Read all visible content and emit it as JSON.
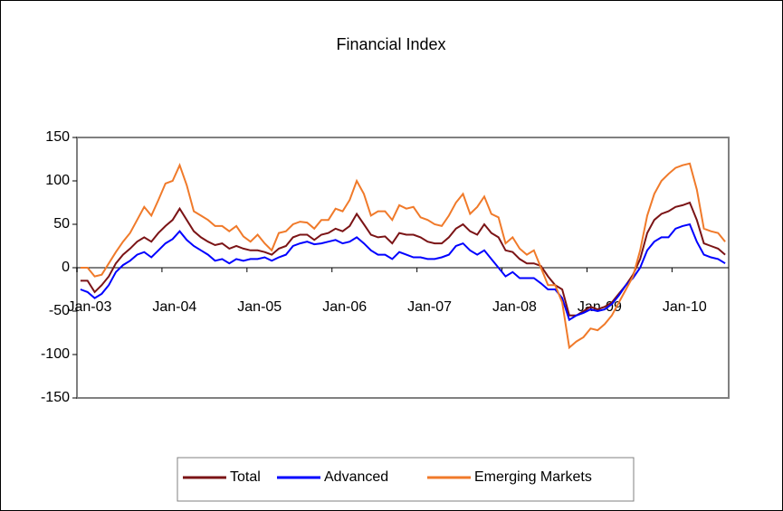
{
  "chart_data": {
    "type": "line",
    "title": "Financial Index",
    "categories": [
      "Jan-03",
      null,
      null,
      null,
      null,
      null,
      null,
      null,
      null,
      null,
      null,
      null,
      "Jan-04",
      null,
      null,
      null,
      null,
      null,
      null,
      null,
      null,
      null,
      null,
      null,
      "Jan-05",
      null,
      null,
      null,
      null,
      null,
      null,
      null,
      null,
      null,
      null,
      null,
      "Jan-06",
      null,
      null,
      null,
      null,
      null,
      null,
      null,
      null,
      null,
      null,
      null,
      "Jan-07",
      null,
      null,
      null,
      null,
      null,
      null,
      null,
      null,
      null,
      null,
      null,
      "Jan-08",
      null,
      null,
      null,
      null,
      null,
      null,
      null,
      null,
      null,
      null,
      null,
      "Jan-09",
      null,
      null,
      null,
      null,
      null,
      null,
      null,
      null,
      null,
      null,
      null,
      "Jan-10",
      null,
      null,
      null,
      null,
      null,
      null,
      null
    ],
    "series": [
      {
        "name": "Total",
        "color": "#7b1416",
        "values": [
          -15,
          -15,
          -28,
          -20,
          -10,
          5,
          15,
          22,
          30,
          35,
          30,
          40,
          48,
          55,
          68,
          55,
          42,
          35,
          30,
          26,
          28,
          22,
          25,
          22,
          20,
          20,
          18,
          15,
          22,
          25,
          35,
          38,
          38,
          32,
          38,
          40,
          45,
          42,
          48,
          62,
          50,
          38,
          35,
          36,
          28,
          40,
          38,
          38,
          35,
          30,
          28,
          28,
          35,
          45,
          50,
          42,
          38,
          50,
          40,
          35,
          20,
          18,
          10,
          5,
          5,
          2,
          -10,
          -20,
          -25,
          -55,
          -55,
          -50,
          -45,
          -48,
          -45,
          -40,
          -30,
          -20,
          -8,
          10,
          40,
          55,
          62,
          65,
          70,
          72,
          75,
          55,
          28,
          25,
          22,
          15
        ]
      },
      {
        "name": "Advanced",
        "color": "#0000ff",
        "values": [
          -25,
          -28,
          -35,
          -30,
          -20,
          -5,
          3,
          8,
          15,
          18,
          12,
          20,
          28,
          33,
          42,
          32,
          25,
          20,
          15,
          8,
          10,
          5,
          10,
          8,
          10,
          10,
          12,
          8,
          12,
          15,
          25,
          28,
          30,
          27,
          28,
          30,
          32,
          28,
          30,
          35,
          28,
          20,
          15,
          15,
          10,
          18,
          15,
          12,
          12,
          10,
          10,
          12,
          15,
          25,
          28,
          20,
          15,
          20,
          10,
          0,
          -10,
          -5,
          -12,
          -12,
          -12,
          -18,
          -25,
          -25,
          -35,
          -60,
          -55,
          -52,
          -48,
          -50,
          -48,
          -42,
          -32,
          -20,
          -12,
          0,
          20,
          30,
          35,
          35,
          45,
          48,
          50,
          30,
          15,
          12,
          10,
          5
        ]
      },
      {
        "name": "Emerging Markets",
        "color": "#f07a2a",
        "values": [
          0,
          0,
          -10,
          -8,
          5,
          18,
          30,
          40,
          55,
          70,
          60,
          78,
          97,
          100,
          118,
          95,
          65,
          60,
          55,
          48,
          48,
          42,
          48,
          36,
          30,
          38,
          28,
          20,
          40,
          42,
          50,
          53,
          52,
          45,
          55,
          55,
          68,
          65,
          78,
          100,
          85,
          60,
          65,
          65,
          55,
          72,
          68,
          70,
          58,
          55,
          50,
          48,
          60,
          75,
          85,
          62,
          70,
          82,
          62,
          58,
          28,
          35,
          22,
          15,
          20,
          0,
          -20,
          -20,
          -40,
          -92,
          -85,
          -80,
          -70,
          -72,
          -65,
          -55,
          -40,
          -25,
          -10,
          20,
          60,
          85,
          100,
          108,
          115,
          118,
          120,
          90,
          45,
          42,
          40,
          30
        ]
      }
    ],
    "ylim": [
      -150,
      150
    ],
    "yticks": [
      150,
      100,
      50,
      0,
      -50,
      -100,
      -150
    ],
    "grid": false,
    "legend": "bottom"
  }
}
